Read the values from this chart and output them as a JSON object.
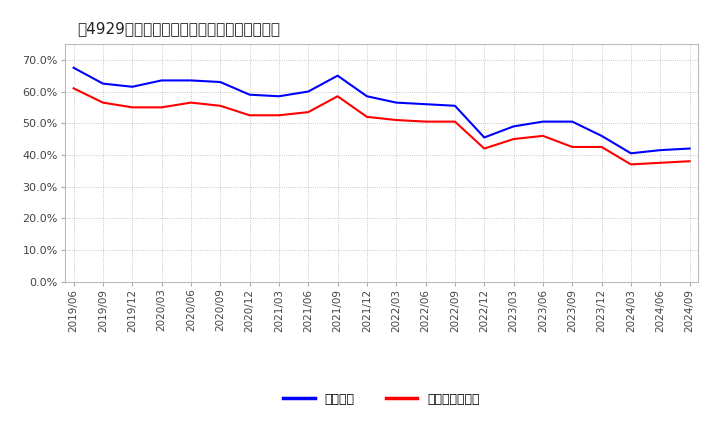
{
  "title": "［4929］　固定比率、固定長期適合率の推移",
  "x_labels": [
    "2019/06",
    "2019/09",
    "2019/12",
    "2020/03",
    "2020/06",
    "2020/09",
    "2020/12",
    "2021/03",
    "2021/06",
    "2021/09",
    "2021/12",
    "2022/03",
    "2022/06",
    "2022/09",
    "2022/12",
    "2023/03",
    "2023/06",
    "2023/09",
    "2023/12",
    "2024/03",
    "2024/06",
    "2024/09"
  ],
  "fixed_ratio": [
    67.5,
    62.5,
    61.5,
    63.5,
    63.5,
    63.0,
    59.0,
    58.5,
    60.0,
    65.0,
    58.5,
    56.5,
    56.0,
    55.5,
    45.5,
    49.0,
    50.5,
    50.5,
    46.0,
    40.5,
    41.5,
    42.0
  ],
  "fixed_long_ratio": [
    61.0,
    56.5,
    55.0,
    55.0,
    56.5,
    55.5,
    52.5,
    52.5,
    53.5,
    58.5,
    52.0,
    51.0,
    50.5,
    50.5,
    42.0,
    45.0,
    46.0,
    42.5,
    42.5,
    37.0,
    37.5,
    38.0
  ],
  "line1_color": "#0000ff",
  "line2_color": "#ff0000",
  "line1_label": "固定比率",
  "line2_label": "固定長期適合率",
  "ylim": [
    0,
    75
  ],
  "yticks": [
    0,
    10,
    20,
    30,
    40,
    50,
    60,
    70
  ],
  "ytick_labels": [
    "0.0%",
    "10.0%",
    "20.0%",
    "30.0%",
    "40.0%",
    "50.0%",
    "60.0%",
    "70.0%"
  ],
  "background_color": "#ffffff",
  "grid_color": "#999999",
  "title_fontsize": 11,
  "axis_fontsize": 7.5,
  "legend_fontsize": 9
}
